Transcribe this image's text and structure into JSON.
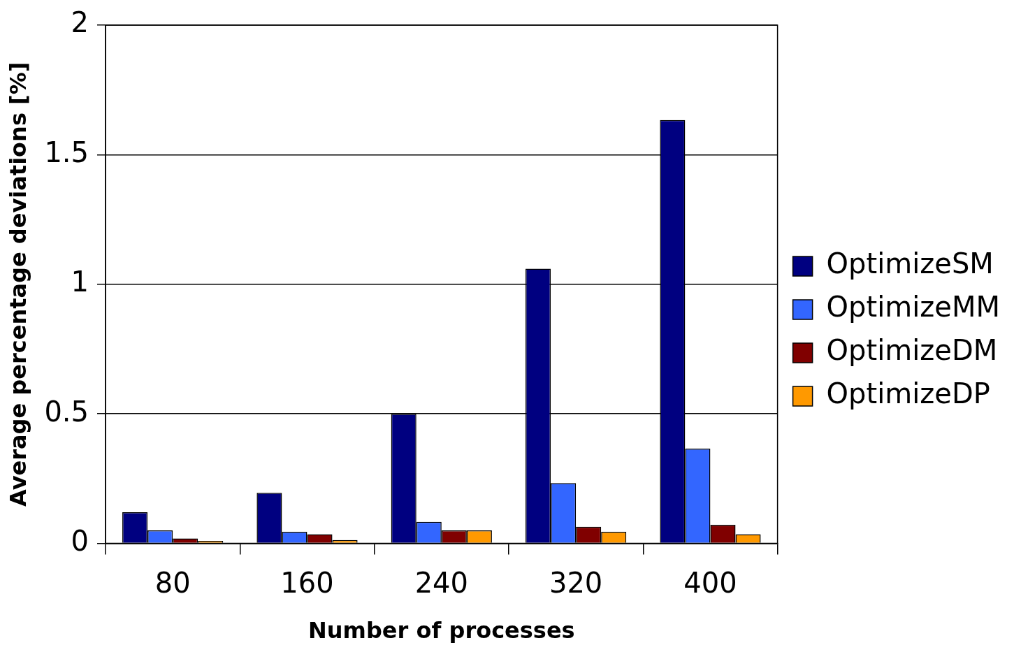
{
  "chart_data": {
    "type": "bar",
    "xlabel": "Number of processes",
    "ylabel": "Average percentage deviations [%]",
    "categories": [
      "80",
      "160",
      "240",
      "320",
      "400"
    ],
    "series": [
      {
        "name": "OptimizeSM",
        "color": "#000080",
        "values": [
          0.12,
          0.195,
          0.5,
          1.06,
          1.634
        ]
      },
      {
        "name": "OptimizeMM",
        "color": "#3366ff",
        "values": [
          0.05,
          0.045,
          0.083,
          0.233,
          0.366
        ]
      },
      {
        "name": "OptimizeDM",
        "color": "#800000",
        "values": [
          0.019,
          0.035,
          0.05,
          0.064,
          0.072
        ]
      },
      {
        "name": "OptimizeDP",
        "color": "#ff9900",
        "values": [
          0.01,
          0.013,
          0.05,
          0.045,
          0.035
        ]
      }
    ],
    "ylim": [
      0,
      2
    ],
    "yticks": [
      0,
      0.5,
      1,
      1.5,
      2
    ],
    "grid": "y",
    "legend": "right"
  }
}
